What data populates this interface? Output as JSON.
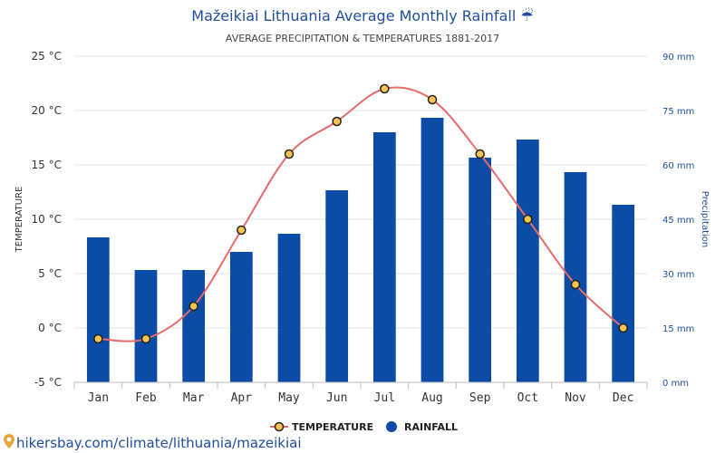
{
  "title": "Mažeikiai Lithuania Average Monthly Rainfall ☔",
  "subtitle": "AVERAGE PRECIPITATION & TEMPERATURES 1881-2017",
  "source": "hikersbay.com/climate/lithuania/mazeikiai",
  "colors": {
    "temperature_line": "#e86a6a",
    "temperature_marker": "#f5c34f",
    "rainfall_bar": "#0c4ca6",
    "title": "#1f4e9c"
  },
  "chart_data": {
    "type": "bar",
    "categories": [
      "Jan",
      "Feb",
      "Mar",
      "Apr",
      "May",
      "Jun",
      "Jul",
      "Aug",
      "Sep",
      "Oct",
      "Nov",
      "Dec"
    ],
    "series": [
      {
        "name": "TEMPERATURE",
        "type": "line",
        "axis": "left",
        "unit": "°C",
        "values": [
          -1,
          -1,
          2,
          9,
          16,
          19,
          22,
          21,
          16,
          10,
          4,
          0
        ]
      },
      {
        "name": "RAINFALL",
        "type": "bar",
        "axis": "right",
        "unit": "mm",
        "values": [
          40,
          31,
          31,
          36,
          41,
          53,
          69,
          73,
          62,
          67,
          58,
          49
        ]
      }
    ],
    "ylabel": "TEMPERATURE",
    "y2label": "Precipitation",
    "ylim": [
      -5,
      25
    ],
    "y2lim": [
      0,
      90
    ],
    "yticks": [
      "25 °C",
      "20 °C",
      "15 °C",
      "10 °C",
      "5 °C",
      "0 °C",
      "-5 °C"
    ],
    "y2ticks": [
      "90 mm",
      "75 mm",
      "60 mm",
      "45 mm",
      "30 mm",
      "15 mm",
      "0 mm"
    ],
    "grid": true,
    "legend": "bottom-center"
  }
}
